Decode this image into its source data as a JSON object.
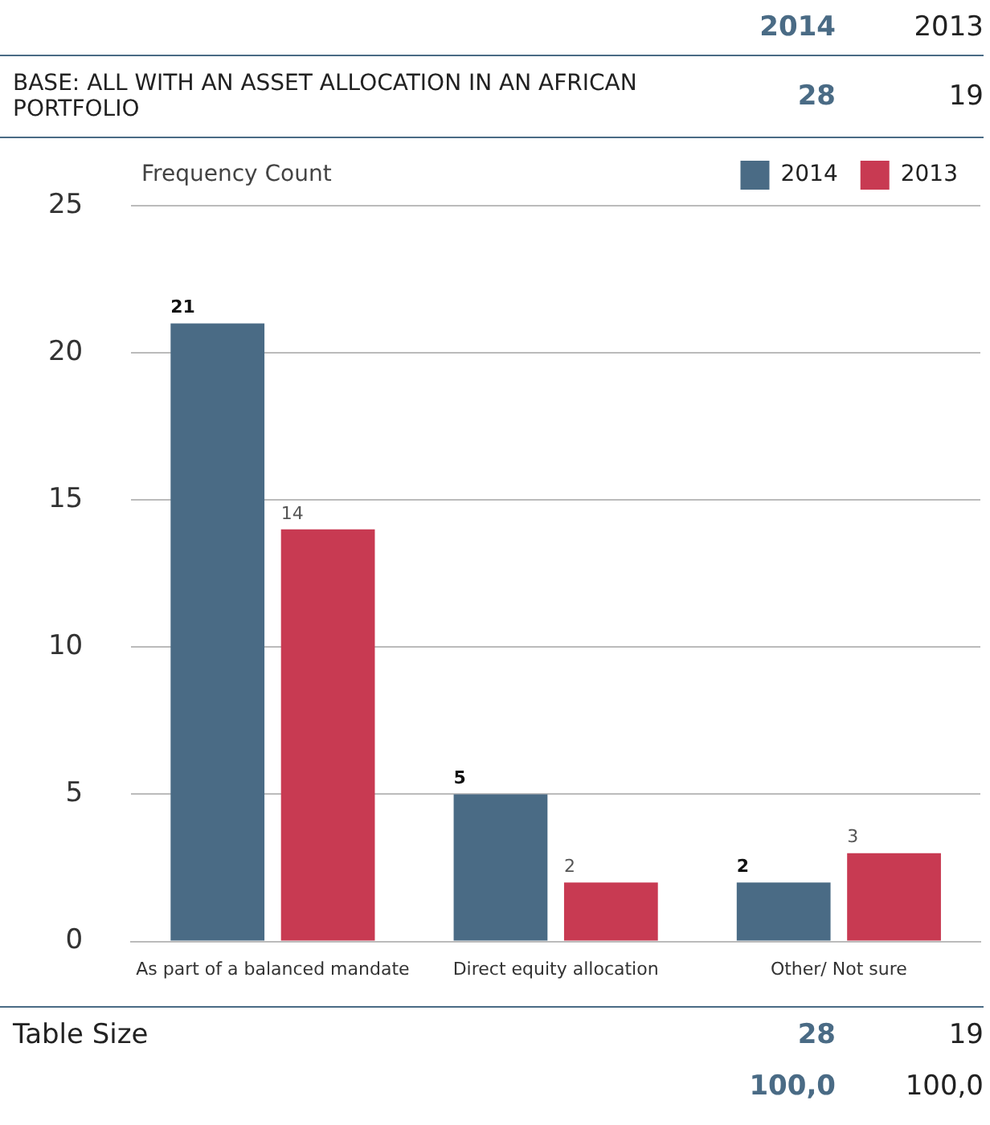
{
  "chart_data": {
    "type": "bar",
    "ylabel": "Frequency Count",
    "categories": [
      "As part of a balanced mandate",
      "Direct equity allocation",
      "Other/ Not sure"
    ],
    "series": [
      {
        "name": "2014",
        "color": "#4a6b85",
        "values": [
          21,
          5,
          2
        ]
      },
      {
        "name": "2013",
        "color": "#c83a52",
        "values": [
          14,
          2,
          3
        ]
      }
    ],
    "ylim": [
      0,
      25
    ],
    "yticks": [
      0,
      5,
      10,
      15,
      20,
      25
    ],
    "grid": "y",
    "legend": "top right",
    "data_labels": true,
    "annotations": [
      "2014",
      "2013",
      "BASE: ALL WITH AN ASSET ALLOCATION IN AN AFRICAN PORTFOLIO",
      "28",
      "19",
      "Table Size",
      "28",
      "19",
      "100,0",
      "100,0"
    ]
  }
}
